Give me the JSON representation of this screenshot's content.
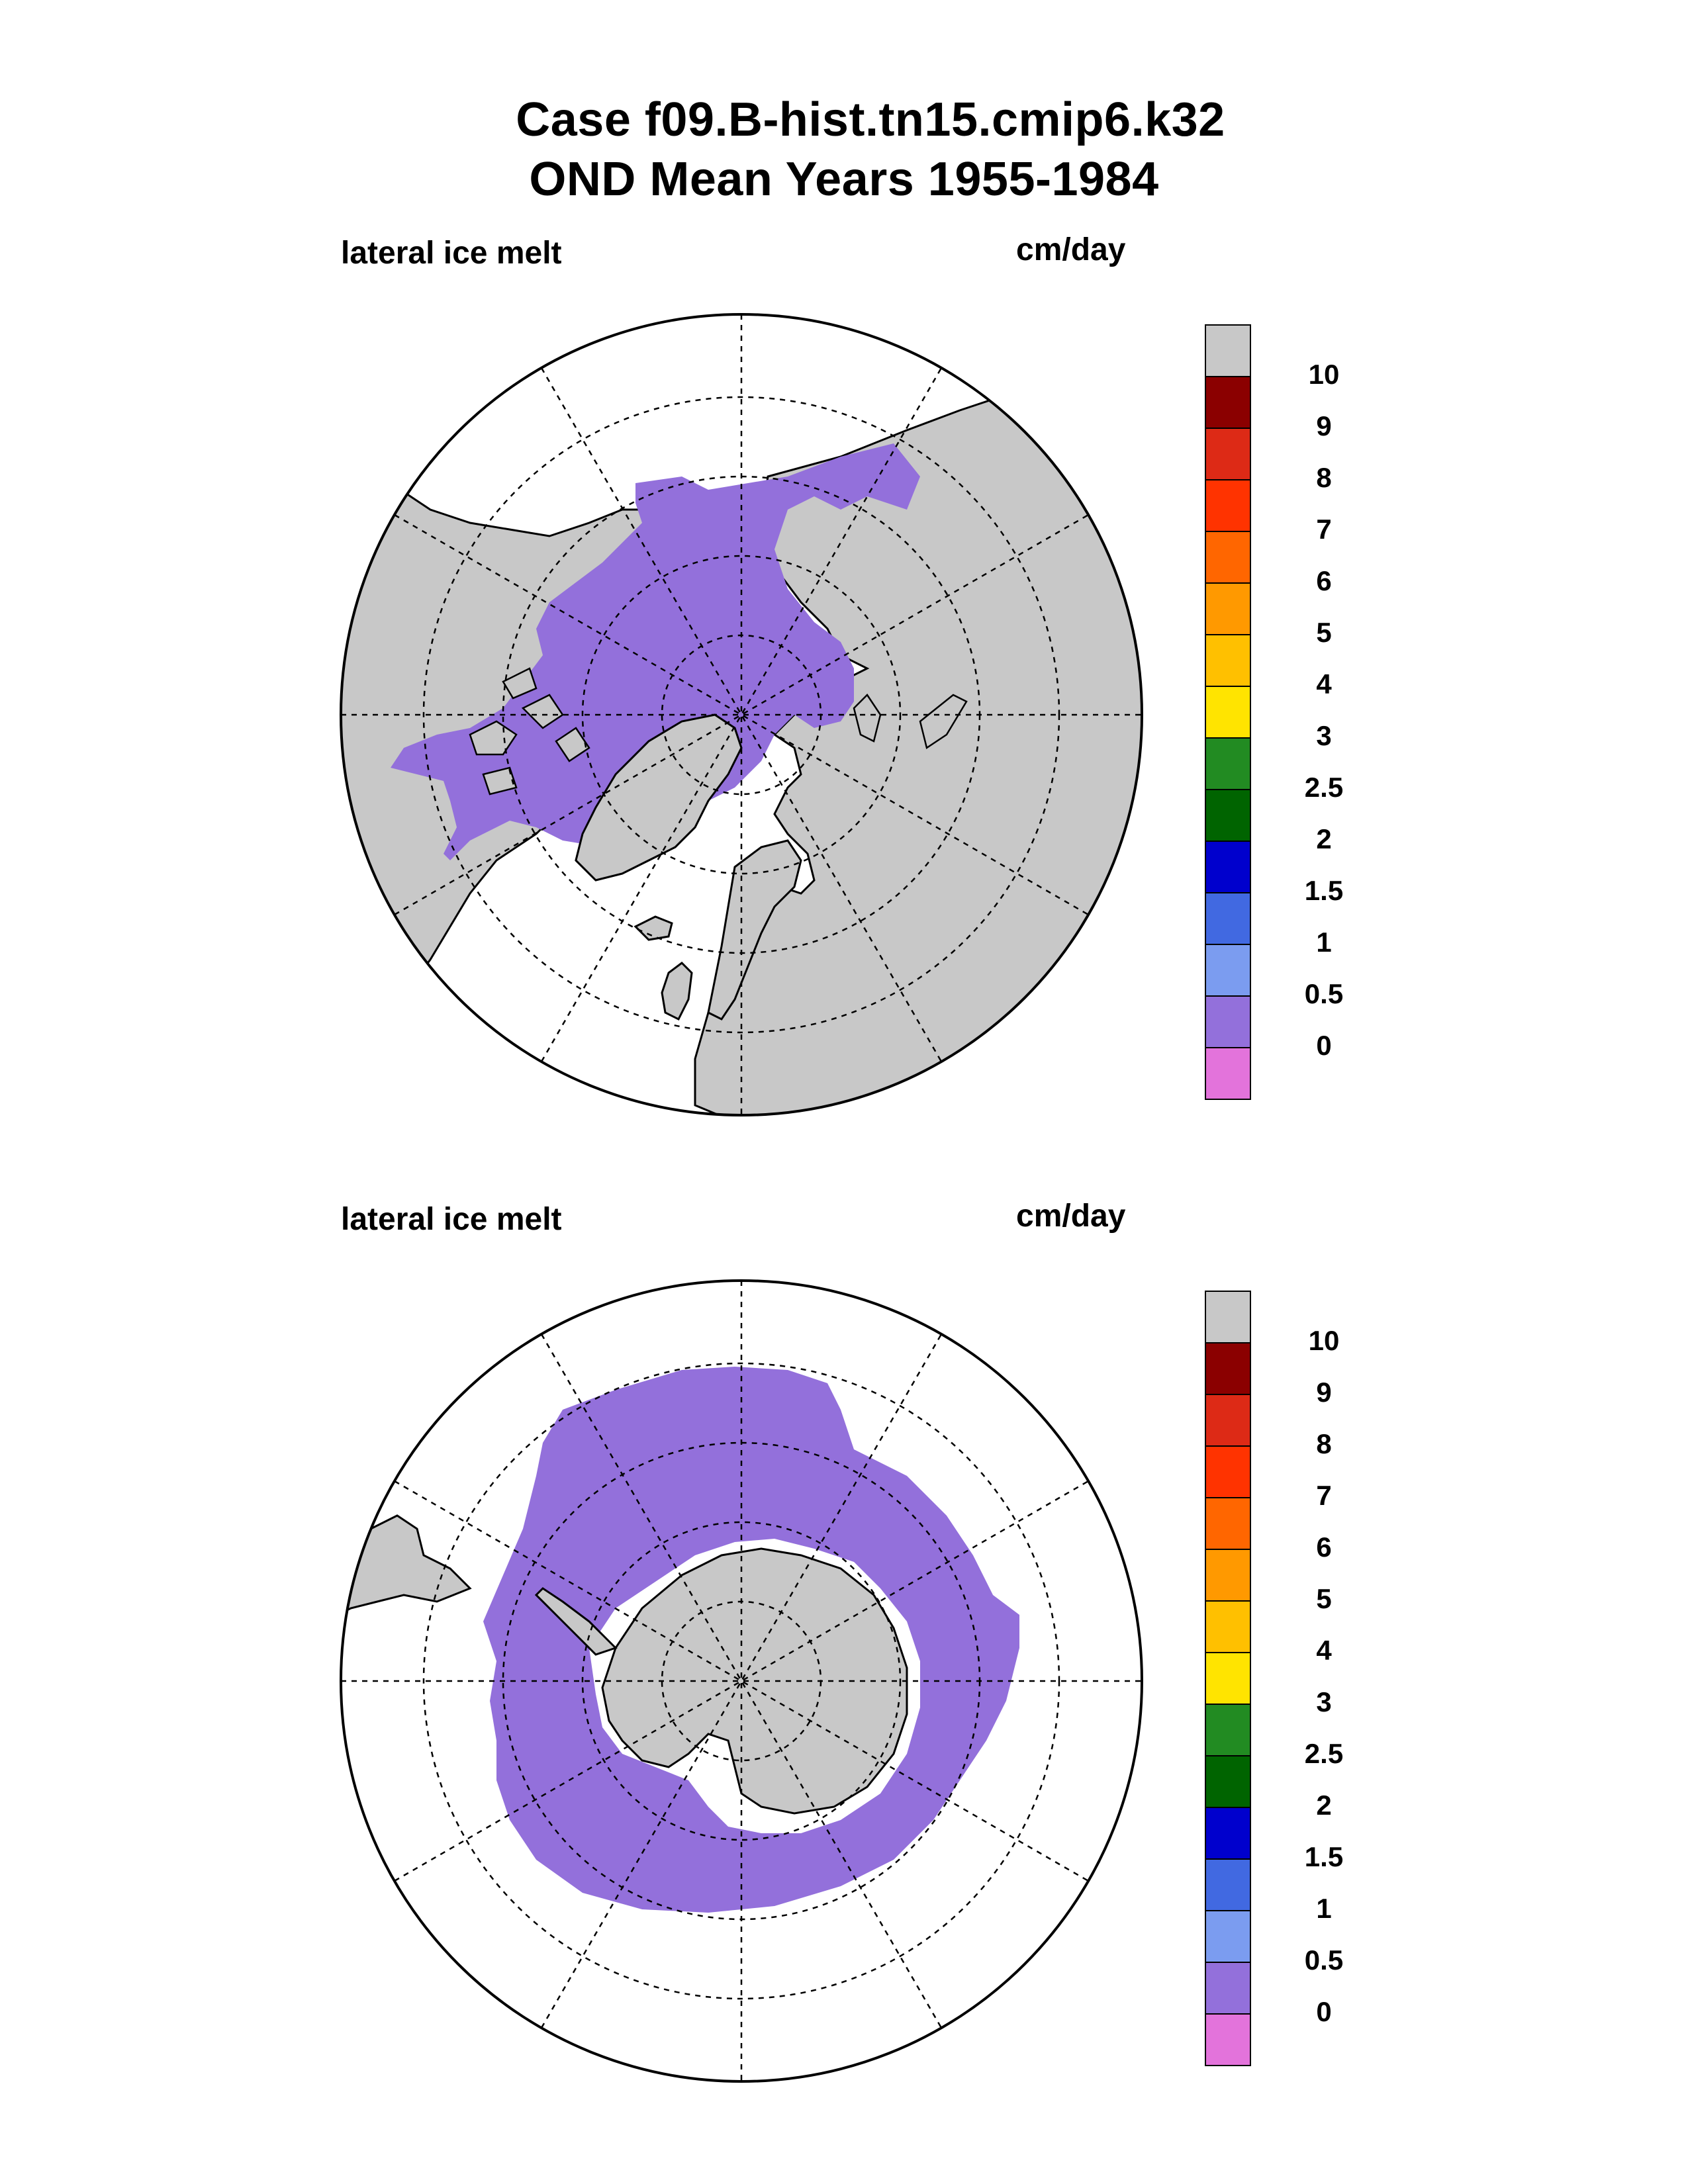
{
  "title": {
    "line1": "Case f09.B-hist.tn15.cmip6.k32",
    "line2": "OND Mean   Years 1955-1984"
  },
  "panels": [
    {
      "id": "north",
      "variable_label": "lateral ice melt",
      "units": "cm/day"
    },
    {
      "id": "south",
      "variable_label": "lateral ice melt",
      "units": "cm/day"
    }
  ],
  "colorbar": {
    "levels": [
      "10",
      "9",
      "8",
      "7",
      "6",
      "5",
      "4",
      "3",
      "2.5",
      "2",
      "1.5",
      "1",
      "0.5",
      "0"
    ],
    "colors": [
      "#c8c8c8",
      "#8b0000",
      "#dd2a16",
      "#ff3300",
      "#ff6600",
      "#ff9900",
      "#ffc000",
      "#ffe400",
      "#228b22",
      "#006400",
      "#0000cd",
      "#4169e1",
      "#7b9cf0",
      "#9370db",
      "#e373db"
    ]
  },
  "map_colors": {
    "land": "#c8c8c8",
    "ice_melt": "#9370db",
    "ocean": "#ffffff"
  }
}
